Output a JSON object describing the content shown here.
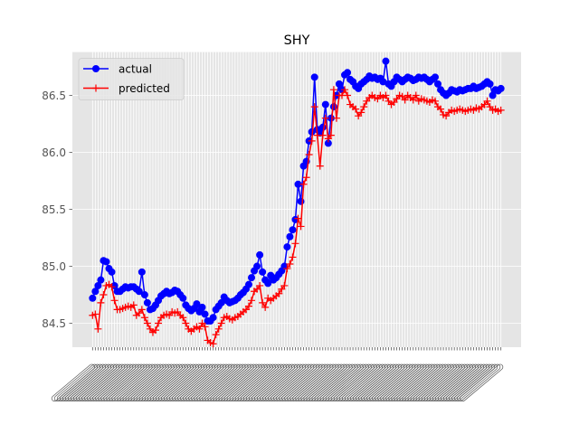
{
  "chart_data": {
    "type": "line",
    "title": "SHY",
    "xlabel": "",
    "ylabel": "",
    "n_points": 150,
    "ylim": [
      84.29,
      86.88
    ],
    "yticks": [
      "84.5",
      "85.0",
      "85.5",
      "86.0",
      "86.5"
    ],
    "ytick_values": [
      84.5,
      85.0,
      85.5,
      86.0,
      86.5
    ],
    "xtick_labels_note": "x tick labels are dense, rotated and illegible",
    "legend_position": "upper left",
    "grid": true,
    "style": "ggplot",
    "series": [
      {
        "name": "actual",
        "color": "#0000ff",
        "marker": "circle",
        "values": [
          84.72,
          84.78,
          84.83,
          84.88,
          85.05,
          85.04,
          84.98,
          84.95,
          84.83,
          84.78,
          84.78,
          84.8,
          84.82,
          84.81,
          84.82,
          84.82,
          84.8,
          84.78,
          84.95,
          84.75,
          84.68,
          84.62,
          84.63,
          84.66,
          84.7,
          84.74,
          84.76,
          84.78,
          84.76,
          84.77,
          84.79,
          84.78,
          84.75,
          84.72,
          84.66,
          84.63,
          84.61,
          84.63,
          84.67,
          84.6,
          84.64,
          84.58,
          84.52,
          84.52,
          84.55,
          84.62,
          84.65,
          84.68,
          84.73,
          84.7,
          84.68,
          84.69,
          84.7,
          84.72,
          84.75,
          84.77,
          84.8,
          84.84,
          84.9,
          84.96,
          85.0,
          85.1,
          84.95,
          84.88,
          84.85,
          84.92,
          84.88,
          84.9,
          84.93,
          84.96,
          85.0,
          85.17,
          85.26,
          85.32,
          85.41,
          85.72,
          85.57,
          85.88,
          85.92,
          86.1,
          86.18,
          86.66,
          86.2,
          86.17,
          86.22,
          86.42,
          86.08,
          86.3,
          86.4,
          86.5,
          86.6,
          86.55,
          86.68,
          86.7,
          86.64,
          86.62,
          86.58,
          86.56,
          86.6,
          86.62,
          86.64,
          86.67,
          86.65,
          86.66,
          86.64,
          86.65,
          86.62,
          86.8,
          86.6,
          86.58,
          86.62,
          86.66,
          86.64,
          86.62,
          86.64,
          86.66,
          86.65,
          86.63,
          86.64,
          86.66,
          86.65,
          86.66,
          86.64,
          86.62,
          86.64,
          86.66,
          86.6,
          86.55,
          86.52,
          86.5,
          86.52,
          86.55,
          86.54,
          86.53,
          86.55,
          86.54,
          86.55,
          86.56,
          86.56,
          86.58,
          86.56,
          86.57,
          86.58,
          86.6,
          86.62,
          86.6,
          86.5,
          86.55,
          86.54,
          86.56
        ]
      },
      {
        "name": "predicted",
        "color": "#ff0000",
        "marker": "plus",
        "values": [
          84.57,
          84.58,
          84.45,
          84.68,
          84.75,
          84.83,
          84.84,
          84.82,
          84.7,
          84.62,
          84.62,
          84.63,
          84.64,
          84.65,
          84.64,
          84.66,
          84.57,
          84.59,
          84.62,
          84.55,
          84.5,
          84.45,
          84.42,
          84.44,
          84.5,
          84.55,
          84.57,
          84.58,
          84.57,
          84.6,
          84.59,
          84.6,
          84.57,
          84.55,
          84.5,
          84.45,
          84.43,
          84.45,
          84.47,
          84.45,
          84.5,
          84.47,
          84.35,
          84.33,
          84.32,
          84.4,
          84.45,
          84.5,
          84.55,
          84.56,
          84.54,
          84.53,
          84.55,
          84.56,
          84.58,
          84.6,
          84.62,
          84.65,
          84.7,
          84.78,
          84.8,
          84.83,
          84.68,
          84.64,
          84.72,
          84.7,
          84.72,
          84.74,
          84.76,
          84.8,
          84.83,
          84.98,
          85.02,
          85.08,
          85.2,
          85.42,
          85.35,
          85.72,
          85.78,
          85.98,
          86.1,
          86.4,
          86.15,
          85.88,
          86.15,
          86.3,
          86.12,
          86.15,
          86.55,
          86.3,
          86.5,
          86.5,
          86.55,
          86.5,
          86.42,
          86.4,
          86.38,
          86.32,
          86.35,
          86.4,
          86.45,
          86.48,
          86.5,
          86.48,
          86.47,
          86.5,
          86.48,
          86.5,
          86.45,
          86.42,
          86.44,
          86.47,
          86.5,
          86.49,
          86.46,
          86.5,
          86.48,
          86.46,
          86.5,
          86.45,
          86.47,
          86.46,
          86.45,
          86.44,
          86.46,
          86.45,
          86.4,
          86.38,
          86.33,
          86.32,
          86.35,
          86.37,
          86.36,
          86.37,
          86.38,
          86.37,
          86.36,
          86.37,
          86.38,
          86.37,
          86.39,
          86.38,
          86.4,
          86.42,
          86.45,
          86.4,
          86.37,
          86.38,
          86.36,
          86.37
        ]
      }
    ]
  }
}
